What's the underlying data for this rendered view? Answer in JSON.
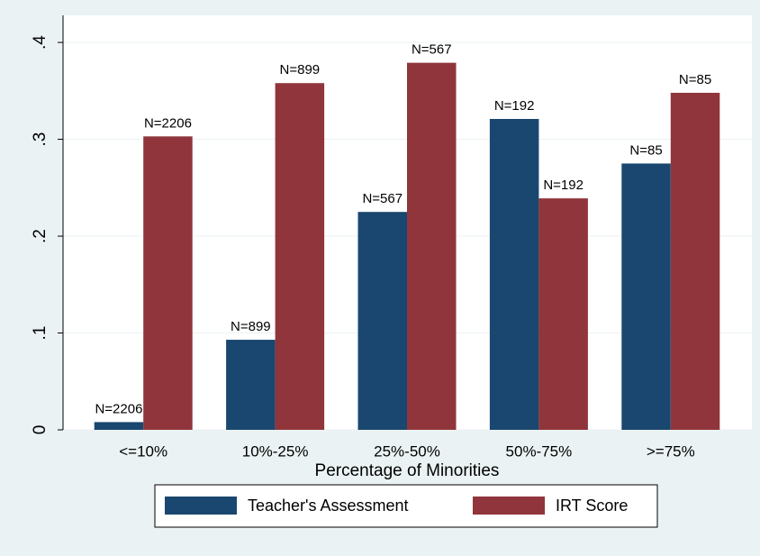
{
  "chart_data": {
    "type": "bar",
    "x_label": "Percentage of Minorities",
    "categories": [
      "<=10%",
      "10%-25%",
      "25%-50%",
      "50%-75%",
      ">=75%"
    ],
    "series": [
      {
        "name": "Teacher's Assessment",
        "color": "#1a476f",
        "values": [
          0.008,
          0.093,
          0.225,
          0.321,
          0.275
        ],
        "annotations": [
          "N=2206",
          "N=899",
          "N=567",
          "N=192",
          "N=85"
        ]
      },
      {
        "name": "IRT Score",
        "color": "#90353b",
        "values": [
          0.303,
          0.358,
          0.379,
          0.239,
          0.348
        ],
        "annotations": [
          "N=2206",
          "N=899",
          "N=567",
          "N=192",
          "N=85"
        ]
      }
    ],
    "ylim": [
      0,
      0.428
    ],
    "yticks": [
      0,
      {
        "value": 0.1,
        "label": ".1"
      },
      {
        "value": 0.2,
        "label": ".2"
      },
      {
        "value": 0.3,
        "label": ".3"
      },
      {
        "value": 0.4,
        "label": ".4"
      }
    ],
    "grid": true,
    "legend": "bottom"
  }
}
